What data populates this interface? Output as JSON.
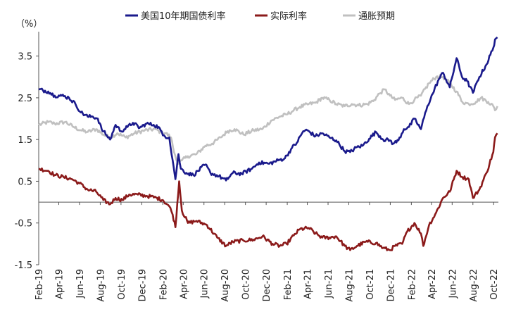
{
  "chart_data": {
    "type": "line",
    "title": "",
    "unit_label": "（%）",
    "xlabel": "",
    "ylabel": "",
    "ylim": [
      -1.5,
      4.0
    ],
    "yticks": [
      3.5,
      2.5,
      1.5,
      0.5,
      -0.5,
      -1.5
    ],
    "ytick_labels": [
      "3.5",
      "2.5",
      "1.5",
      "0.5",
      "-0.5",
      "-1.5"
    ],
    "xlim": [
      "2019-02",
      "2022-10"
    ],
    "xticks": [
      "Feb-19",
      "Apr-19",
      "Jun-19",
      "Aug-19",
      "Oct-19",
      "Dec-19",
      "Feb-20",
      "Apr-20",
      "Jun-20",
      "Aug-20",
      "Oct-20",
      "Dec-20",
      "Feb-21",
      "Apr-21",
      "Jun-21",
      "Aug-21",
      "Oct-21",
      "Dec-21",
      "Feb-22",
      "Apr-22",
      "Jun-22",
      "Aug-22",
      "Oct-22"
    ],
    "grid": false,
    "legend_position": "top",
    "series": [
      {
        "name": "美国10年期国债利率",
        "color": "#1a1a8c",
        "points": [
          [
            "2019-02-01",
            2.7
          ],
          [
            "2019-03-01",
            2.65
          ],
          [
            "2019-03-20",
            2.55
          ],
          [
            "2019-04-10",
            2.55
          ],
          [
            "2019-05-01",
            2.5
          ],
          [
            "2019-05-20",
            2.35
          ],
          [
            "2019-06-05",
            2.15
          ],
          [
            "2019-06-25",
            2.05
          ],
          [
            "2019-07-10",
            2.05
          ],
          [
            "2019-07-25",
            2.0
          ],
          [
            "2019-08-05",
            1.75
          ],
          [
            "2019-08-20",
            1.6
          ],
          [
            "2019-08-30",
            1.5
          ],
          [
            "2019-09-15",
            1.85
          ],
          [
            "2019-10-01",
            1.7
          ],
          [
            "2019-10-20",
            1.8
          ],
          [
            "2019-11-05",
            1.9
          ],
          [
            "2019-11-25",
            1.78
          ],
          [
            "2019-12-15",
            1.88
          ],
          [
            "2020-01-05",
            1.85
          ],
          [
            "2020-01-20",
            1.8
          ],
          [
            "2020-02-01",
            1.6
          ],
          [
            "2020-02-20",
            1.55
          ],
          [
            "2020-03-01",
            1.0
          ],
          [
            "2020-03-09",
            0.55
          ],
          [
            "2020-03-18",
            1.15
          ],
          [
            "2020-03-25",
            0.8
          ],
          [
            "2020-04-10",
            0.7
          ],
          [
            "2020-05-01",
            0.65
          ],
          [
            "2020-06-05",
            0.9
          ],
          [
            "2020-06-20",
            0.7
          ],
          [
            "2020-07-15",
            0.62
          ],
          [
            "2020-08-05",
            0.52
          ],
          [
            "2020-08-25",
            0.7
          ],
          [
            "2020-09-20",
            0.68
          ],
          [
            "2020-10-20",
            0.8
          ],
          [
            "2020-11-10",
            0.95
          ],
          [
            "2020-12-10",
            0.92
          ],
          [
            "2021-01-05",
            1.0
          ],
          [
            "2021-01-25",
            1.05
          ],
          [
            "2021-02-15",
            1.3
          ],
          [
            "2021-03-01",
            1.42
          ],
          [
            "2021-03-20",
            1.7
          ],
          [
            "2021-04-01",
            1.72
          ],
          [
            "2021-04-25",
            1.58
          ],
          [
            "2021-05-15",
            1.65
          ],
          [
            "2021-06-05",
            1.55
          ],
          [
            "2021-06-25",
            1.48
          ],
          [
            "2021-07-20",
            1.22
          ],
          [
            "2021-08-05",
            1.2
          ],
          [
            "2021-08-25",
            1.32
          ],
          [
            "2021-09-10",
            1.35
          ],
          [
            "2021-09-30",
            1.52
          ],
          [
            "2021-10-20",
            1.68
          ],
          [
            "2021-11-10",
            1.5
          ],
          [
            "2021-11-30",
            1.48
          ],
          [
            "2021-12-10",
            1.4
          ],
          [
            "2021-12-25",
            1.48
          ],
          [
            "2022-01-10",
            1.75
          ],
          [
            "2022-01-25",
            1.8
          ],
          [
            "2022-02-10",
            2.0
          ],
          [
            "2022-03-01",
            1.75
          ],
          [
            "2022-03-20",
            2.3
          ],
          [
            "2022-04-05",
            2.6
          ],
          [
            "2022-04-20",
            2.9
          ],
          [
            "2022-05-05",
            3.1
          ],
          [
            "2022-05-25",
            2.75
          ],
          [
            "2022-06-14",
            3.45
          ],
          [
            "2022-06-30",
            3.0
          ],
          [
            "2022-07-15",
            2.9
          ],
          [
            "2022-08-01",
            2.62
          ],
          [
            "2022-08-20",
            3.0
          ],
          [
            "2022-09-10",
            3.3
          ],
          [
            "2022-09-30",
            3.7
          ],
          [
            "2022-10-05",
            3.9
          ],
          [
            "2022-10-12",
            3.95
          ]
        ]
      },
      {
        "name": "实际利率",
        "color": "#8b1a1a",
        "points": [
          [
            "2019-02-01",
            0.8
          ],
          [
            "2019-03-01",
            0.75
          ],
          [
            "2019-03-20",
            0.65
          ],
          [
            "2019-04-15",
            0.6
          ],
          [
            "2019-05-10",
            0.55
          ],
          [
            "2019-06-01",
            0.45
          ],
          [
            "2019-06-25",
            0.3
          ],
          [
            "2019-07-20",
            0.25
          ],
          [
            "2019-08-10",
            0.05
          ],
          [
            "2019-08-30",
            -0.05
          ],
          [
            "2019-09-15",
            0.1
          ],
          [
            "2019-10-05",
            0.05
          ],
          [
            "2019-10-25",
            0.18
          ],
          [
            "2019-11-20",
            0.18
          ],
          [
            "2019-12-15",
            0.15
          ],
          [
            "2020-01-15",
            0.1
          ],
          [
            "2020-02-01",
            0.05
          ],
          [
            "2020-02-20",
            -0.1
          ],
          [
            "2020-03-01",
            -0.3
          ],
          [
            "2020-03-09",
            -0.6
          ],
          [
            "2020-03-20",
            0.5
          ],
          [
            "2020-03-28",
            -0.2
          ],
          [
            "2020-04-15",
            -0.5
          ],
          [
            "2020-05-10",
            -0.45
          ],
          [
            "2020-06-10",
            -0.55
          ],
          [
            "2020-07-10",
            -0.85
          ],
          [
            "2020-08-05",
            -1.05
          ],
          [
            "2020-08-25",
            -0.95
          ],
          [
            "2020-09-25",
            -0.92
          ],
          [
            "2020-10-25",
            -0.9
          ],
          [
            "2020-11-20",
            -0.82
          ],
          [
            "2020-12-20",
            -1.0
          ],
          [
            "2021-01-10",
            -1.05
          ],
          [
            "2021-01-30",
            -1.0
          ],
          [
            "2021-02-20",
            -0.8
          ],
          [
            "2021-03-10",
            -0.65
          ],
          [
            "2021-04-05",
            -0.62
          ],
          [
            "2021-04-25",
            -0.75
          ],
          [
            "2021-05-15",
            -0.85
          ],
          [
            "2021-06-05",
            -0.85
          ],
          [
            "2021-06-25",
            -0.82
          ],
          [
            "2021-07-20",
            -1.05
          ],
          [
            "2021-08-05",
            -1.15
          ],
          [
            "2021-08-25",
            -1.05
          ],
          [
            "2021-09-20",
            -0.95
          ],
          [
            "2021-10-20",
            -0.98
          ],
          [
            "2021-11-10",
            -1.1
          ],
          [
            "2021-11-30",
            -1.15
          ],
          [
            "2021-12-15",
            -1.05
          ],
          [
            "2022-01-05",
            -1.0
          ],
          [
            "2022-01-20",
            -0.7
          ],
          [
            "2022-02-10",
            -0.5
          ],
          [
            "2022-03-01",
            -0.75
          ],
          [
            "2022-03-08",
            -1.05
          ],
          [
            "2022-03-25",
            -0.55
          ],
          [
            "2022-04-15",
            -0.25
          ],
          [
            "2022-05-05",
            0.1
          ],
          [
            "2022-05-25",
            0.25
          ],
          [
            "2022-06-14",
            0.75
          ],
          [
            "2022-07-01",
            0.6
          ],
          [
            "2022-07-20",
            0.55
          ],
          [
            "2022-08-01",
            0.1
          ],
          [
            "2022-08-20",
            0.3
          ],
          [
            "2022-09-10",
            0.7
          ],
          [
            "2022-09-30",
            1.2
          ],
          [
            "2022-10-05",
            1.55
          ],
          [
            "2022-10-12",
            1.65
          ]
        ]
      },
      {
        "name": "通胀预期",
        "color": "#c0c0c0",
        "points": [
          [
            "2019-02-01",
            1.85
          ],
          [
            "2019-03-01",
            1.92
          ],
          [
            "2019-03-20",
            1.88
          ],
          [
            "2019-04-20",
            1.92
          ],
          [
            "2019-05-15",
            1.8
          ],
          [
            "2019-06-05",
            1.72
          ],
          [
            "2019-06-25",
            1.68
          ],
          [
            "2019-07-20",
            1.75
          ],
          [
            "2019-08-10",
            1.62
          ],
          [
            "2019-08-30",
            1.55
          ],
          [
            "2019-09-20",
            1.65
          ],
          [
            "2019-10-15",
            1.55
          ],
          [
            "2019-11-10",
            1.65
          ],
          [
            "2019-12-10",
            1.72
          ],
          [
            "2020-01-10",
            1.75
          ],
          [
            "2020-01-25",
            1.68
          ],
          [
            "2020-02-10",
            1.65
          ],
          [
            "2020-02-25",
            1.55
          ],
          [
            "2020-03-05",
            1.2
          ],
          [
            "2020-03-18",
            0.92
          ],
          [
            "2020-03-28",
            1.0
          ],
          [
            "2020-04-15",
            1.1
          ],
          [
            "2020-05-10",
            1.15
          ],
          [
            "2020-06-05",
            1.35
          ],
          [
            "2020-06-25",
            1.4
          ],
          [
            "2020-07-20",
            1.55
          ],
          [
            "2020-08-10",
            1.7
          ],
          [
            "2020-08-30",
            1.75
          ],
          [
            "2020-09-25",
            1.62
          ],
          [
            "2020-10-25",
            1.72
          ],
          [
            "2020-11-20",
            1.75
          ],
          [
            "2020-12-15",
            1.95
          ],
          [
            "2021-01-10",
            2.05
          ],
          [
            "2021-01-30",
            2.1
          ],
          [
            "2021-02-20",
            2.2
          ],
          [
            "2021-03-10",
            2.28
          ],
          [
            "2021-04-05",
            2.35
          ],
          [
            "2021-04-25",
            2.38
          ],
          [
            "2021-05-15",
            2.5
          ],
          [
            "2021-06-05",
            2.45
          ],
          [
            "2021-06-25",
            2.35
          ],
          [
            "2021-07-20",
            2.3
          ],
          [
            "2021-08-10",
            2.35
          ],
          [
            "2021-08-30",
            2.32
          ],
          [
            "2021-09-25",
            2.35
          ],
          [
            "2021-10-15",
            2.45
          ],
          [
            "2021-10-30",
            2.6
          ],
          [
            "2021-11-15",
            2.7
          ],
          [
            "2021-11-30",
            2.55
          ],
          [
            "2021-12-15",
            2.45
          ],
          [
            "2022-01-05",
            2.5
          ],
          [
            "2022-01-25",
            2.35
          ],
          [
            "2022-02-10",
            2.45
          ],
          [
            "2022-03-01",
            2.55
          ],
          [
            "2022-03-25",
            2.85
          ],
          [
            "2022-04-15",
            3.0
          ],
          [
            "2022-05-05",
            3.0
          ],
          [
            "2022-05-25",
            2.85
          ],
          [
            "2022-06-14",
            2.65
          ],
          [
            "2022-07-01",
            2.4
          ],
          [
            "2022-07-20",
            2.35
          ],
          [
            "2022-08-10",
            2.4
          ],
          [
            "2022-08-25",
            2.5
          ],
          [
            "2022-09-15",
            2.4
          ],
          [
            "2022-09-30",
            2.3
          ],
          [
            "2022-10-05",
            2.2
          ],
          [
            "2022-10-12",
            2.3
          ]
        ]
      }
    ]
  }
}
